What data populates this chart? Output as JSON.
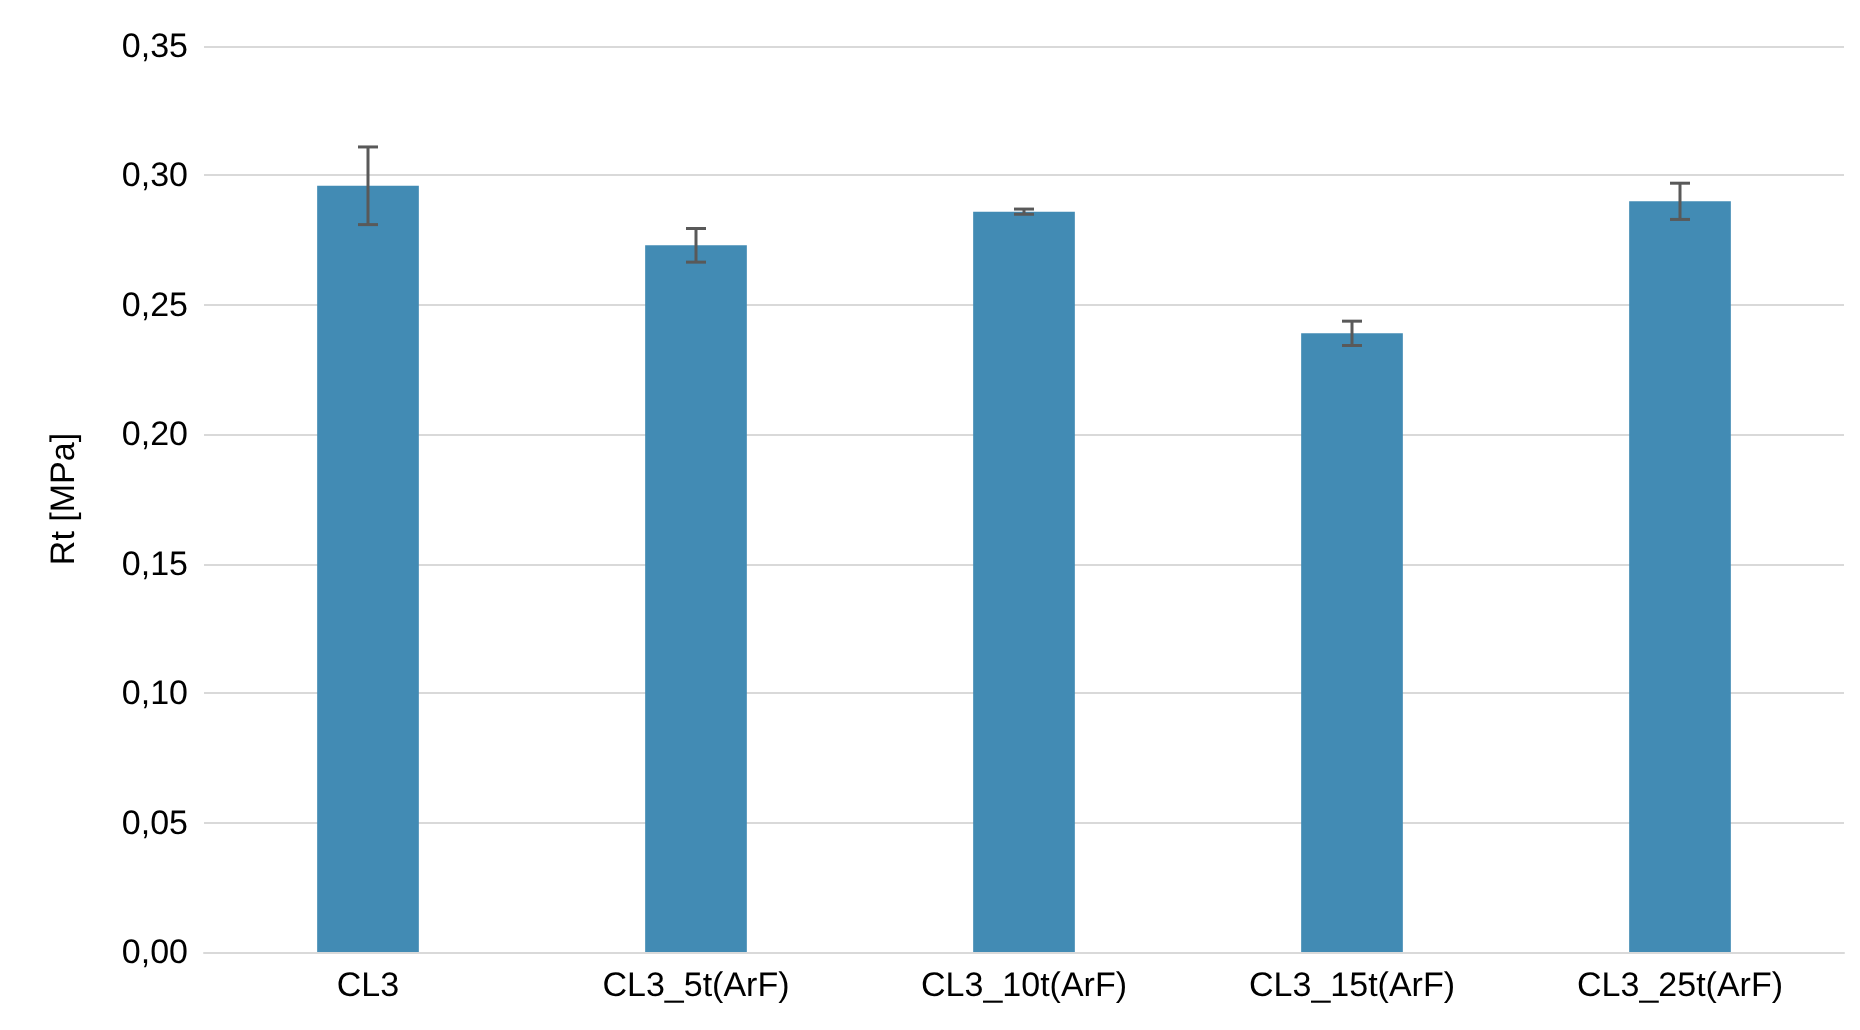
{
  "chart_data": {
    "type": "bar",
    "ylabel": "Rt [MPa]",
    "categories": [
      "CL3",
      "CL3_5t(ArF)",
      "CL3_10t(ArF)",
      "CL3_15t(ArF)",
      "CL3_25t(ArF)"
    ],
    "values": [
      0.296,
      0.273,
      0.286,
      0.239,
      0.29
    ],
    "errors": [
      0.015,
      0.0065,
      0.001,
      0.0047,
      0.007
    ],
    "color": "#428bb4",
    "ylim": [
      0,
      0.35
    ],
    "yticks": [
      {
        "value": 0,
        "label": "0,00"
      },
      {
        "value": 0.05,
        "label": "0,05"
      },
      {
        "value": 0.1,
        "label": "0,10"
      },
      {
        "value": 0.15,
        "label": "0,15"
      },
      {
        "value": 0.2,
        "label": "0,20"
      },
      {
        "value": 0.25,
        "label": "0,25"
      },
      {
        "value": 0.3,
        "label": "0,30"
      },
      {
        "value": 0.35,
        "label": "0,35"
      }
    ],
    "grid": "y"
  }
}
